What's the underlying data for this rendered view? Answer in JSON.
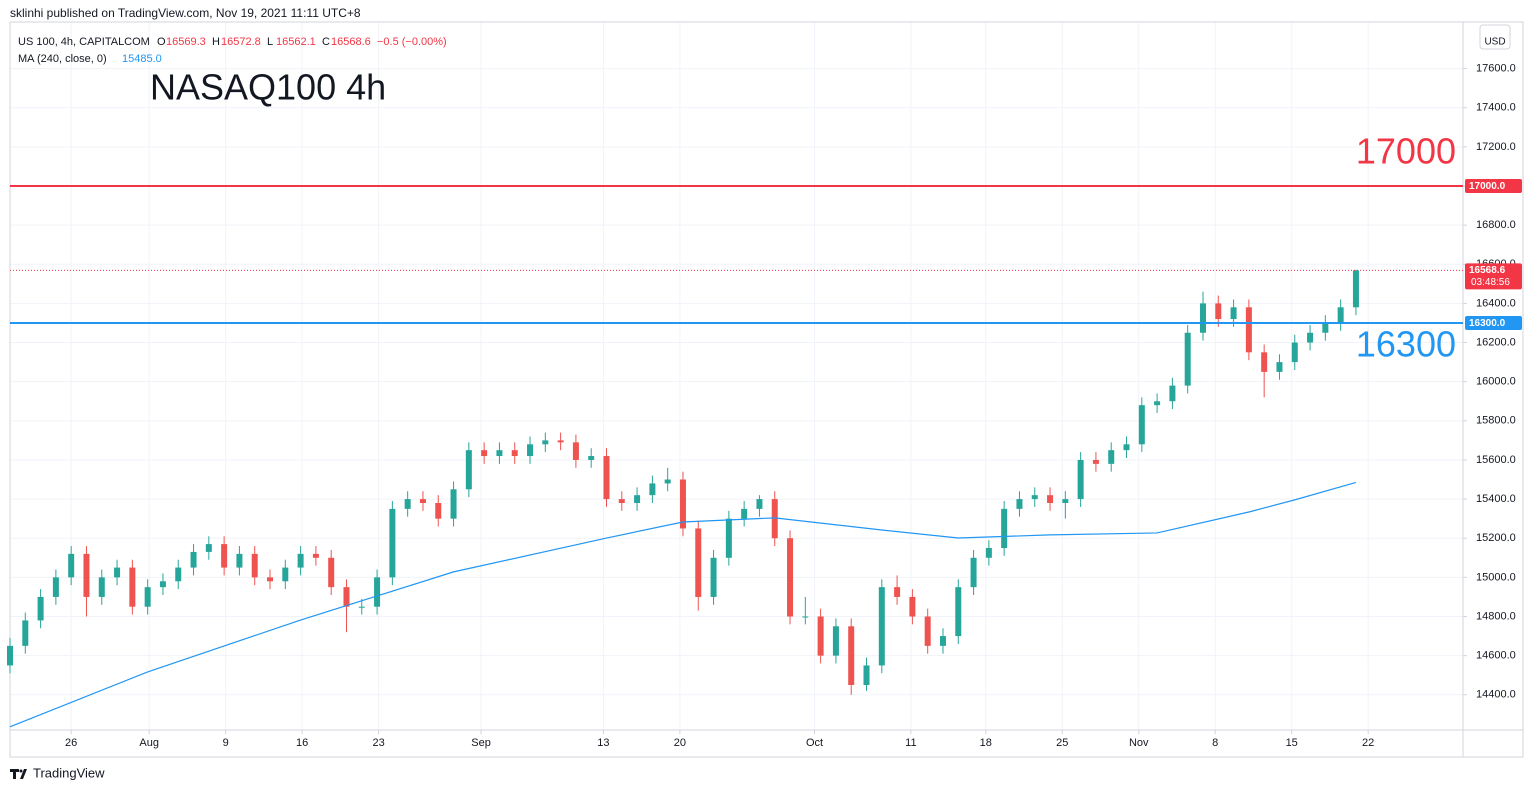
{
  "header": {
    "text": "sklinhi published on TradingView.com, Nov 19, 2021 11:11 UTC+8"
  },
  "footer": {
    "brand": "TradingView"
  },
  "chart_data": {
    "type": "candlestick",
    "title": "NASAQ100 4h",
    "legend": {
      "symbol": "US 100, 4h, CAPITALCOM",
      "ohlc": [
        {
          "key": "O",
          "value": "16569.3"
        },
        {
          "key": "H",
          "value": "16572.8"
        },
        {
          "key": "L",
          "value": "16562.1"
        },
        {
          "key": "C",
          "value": "16568.6"
        }
      ],
      "change": "−0.5 (−0.00%)"
    },
    "currency": "USD",
    "up_color": "#26a69a",
    "down_color": "#ef5350",
    "open": [
      14550,
      14650,
      14780,
      14900,
      15000,
      15120,
      14900,
      15000,
      15050,
      14850,
      14950,
      14980,
      15050,
      15130,
      15170,
      15050,
      15120,
      15000,
      14980,
      15050,
      15120,
      15100,
      14950,
      14850,
      14850,
      15000,
      15350,
      15400,
      15380,
      15300,
      15450,
      15650,
      15620,
      15650,
      15620,
      15680,
      15700,
      15690,
      15600,
      15620,
      15400,
      15380,
      15420,
      15480,
      15500,
      15250,
      14900,
      15100,
      15300,
      15350,
      15400,
      15200,
      14800,
      14800,
      14600,
      14750,
      14450,
      14550,
      14950,
      14900,
      14800,
      14650,
      14700,
      14950,
      15100,
      15150,
      15350,
      15400,
      15420,
      15380,
      15400,
      15600,
      15580,
      15650,
      15680,
      15880,
      15900,
      15980,
      16250,
      16400,
      16320,
      16380,
      16150,
      16050,
      16100,
      16200,
      16250,
      16300,
      16380
    ],
    "high": [
      14690,
      14820,
      14940,
      15040,
      15160,
      15160,
      15040,
      15090,
      15090,
      14990,
      15020,
      15090,
      15170,
      15210,
      15210,
      15160,
      15160,
      15040,
      15090,
      15160,
      15160,
      15140,
      14990,
      14890,
      15040,
      15390,
      15440,
      15440,
      15420,
      15490,
      15690,
      15690,
      15690,
      15690,
      15720,
      15740,
      15740,
      15730,
      15660,
      15660,
      15440,
      15460,
      15520,
      15560,
      15540,
      15290,
      15140,
      15340,
      15390,
      15420,
      15440,
      15240,
      14900,
      14840,
      14790,
      14790,
      14590,
      14990,
      15010,
      14940,
      14840,
      14740,
      14990,
      15140,
      15190,
      15390,
      15440,
      15460,
      15460,
      15440,
      15640,
      15640,
      15690,
      15720,
      15920,
      15940,
      16020,
      16290,
      16460,
      16440,
      16420,
      16420,
      16190,
      16140,
      16240,
      16290,
      16340,
      16420,
      16572.8
    ],
    "low": [
      14510,
      14610,
      14740,
      14860,
      14960,
      14800,
      14860,
      14960,
      14810,
      14810,
      14910,
      14940,
      15010,
      15090,
      15010,
      15010,
      14960,
      14940,
      14940,
      15010,
      15060,
      14910,
      14720,
      14810,
      14810,
      14960,
      15310,
      15340,
      15260,
      15260,
      15410,
      15580,
      15580,
      15580,
      15580,
      15640,
      15650,
      15560,
      15560,
      15360,
      15340,
      15340,
      15380,
      15440,
      15210,
      14830,
      14860,
      15060,
      15260,
      15310,
      15160,
      14760,
      14760,
      14560,
      14560,
      14400,
      14420,
      14510,
      14860,
      14760,
      14610,
      14610,
      14660,
      14910,
      15060,
      15110,
      15310,
      15360,
      15340,
      15300,
      15360,
      15540,
      15540,
      15610,
      15640,
      15840,
      15860,
      15940,
      16210,
      16280,
      16280,
      16110,
      15920,
      16010,
      16060,
      16160,
      16210,
      16260,
      16340
    ],
    "close": [
      14650,
      14780,
      14900,
      15000,
      15120,
      14900,
      15000,
      15050,
      14850,
      14950,
      14980,
      15050,
      15130,
      15170,
      15050,
      15120,
      15000,
      14980,
      15050,
      15120,
      15100,
      14950,
      14850,
      14850,
      15000,
      15350,
      15400,
      15380,
      15300,
      15450,
      15650,
      15620,
      15650,
      15620,
      15680,
      15700,
      15690,
      15600,
      15620,
      15400,
      15380,
      15420,
      15480,
      15500,
      15250,
      14900,
      15100,
      15300,
      15350,
      15400,
      15200,
      14800,
      14800,
      14600,
      14750,
      14450,
      14550,
      14950,
      14900,
      14800,
      14650,
      14700,
      14950,
      15100,
      15150,
      15350,
      15400,
      15420,
      15380,
      15400,
      15600,
      15580,
      15650,
      15680,
      15880,
      15900,
      15980,
      16250,
      16400,
      16320,
      16380,
      16150,
      16050,
      16100,
      16200,
      16250,
      16300,
      16380,
      16568.6
    ],
    "ma": {
      "name": "MA (240, close, 0)",
      "color": "#2196f3",
      "x": [
        0,
        9,
        19,
        29,
        39,
        44,
        50,
        57,
        62,
        68,
        75,
        81,
        84,
        88
      ],
      "values": [
        14236,
        14517,
        14782,
        15028,
        15201,
        15283,
        15304,
        15242,
        15201,
        15217,
        15227,
        15334,
        15396,
        15485
      ],
      "value_label": "15485.0"
    },
    "last_price": {
      "value": 16568.6,
      "countdown": "03:48:56",
      "color": "#f23645"
    },
    "levels": [
      {
        "value": 17000,
        "label": "17000.0",
        "annotation": "17000",
        "color": "#f23645"
      },
      {
        "value": 16300,
        "label": "16300.0",
        "annotation": "16300",
        "color": "#2196f3"
      }
    ],
    "title_color": "#f23645",
    "xlim": [
      0,
      95
    ],
    "ylim": [
      14220,
      17838
    ],
    "xticks": [
      {
        "value": 4,
        "label": "26"
      },
      {
        "value": 9.1,
        "label": "Aug"
      },
      {
        "value": 14.1,
        "label": "9"
      },
      {
        "value": 19.1,
        "label": "16"
      },
      {
        "value": 24.1,
        "label": "23"
      },
      {
        "value": 30.8,
        "label": "Sep"
      },
      {
        "value": 38.8,
        "label": "13"
      },
      {
        "value": 43.8,
        "label": "20"
      },
      {
        "value": 52.6,
        "label": "Oct"
      },
      {
        "value": 58.9,
        "label": "11"
      },
      {
        "value": 63.8,
        "label": "18"
      },
      {
        "value": 68.8,
        "label": "25"
      },
      {
        "value": 73.8,
        "label": "Nov"
      },
      {
        "value": 78.8,
        "label": "8"
      },
      {
        "value": 83.8,
        "label": "15"
      },
      {
        "value": 88.8,
        "label": "22"
      }
    ],
    "yticks": [
      {
        "value": 14400,
        "label": "14400.0"
      },
      {
        "value": 14600,
        "label": "14600.0"
      },
      {
        "value": 14800,
        "label": "14800.0"
      },
      {
        "value": 15000,
        "label": "15000.0"
      },
      {
        "value": 15200,
        "label": "15200.0"
      },
      {
        "value": 15400,
        "label": "15400.0"
      },
      {
        "value": 15600,
        "label": "15600.0"
      },
      {
        "value": 15800,
        "label": "15800.0"
      },
      {
        "value": 16000,
        "label": "16000.0"
      },
      {
        "value": 16200,
        "label": "16200.0"
      },
      {
        "value": 16400,
        "label": "16400.0"
      },
      {
        "value": 16600,
        "label": "16600.0"
      },
      {
        "value": 16800,
        "label": "16800.0"
      },
      {
        "value": 17000,
        "label": "17000.0"
      },
      {
        "value": 17200,
        "label": "17200.0"
      },
      {
        "value": 17400,
        "label": "17400.0"
      },
      {
        "value": 17600,
        "label": "17600.0"
      }
    ],
    "grid": true
  }
}
